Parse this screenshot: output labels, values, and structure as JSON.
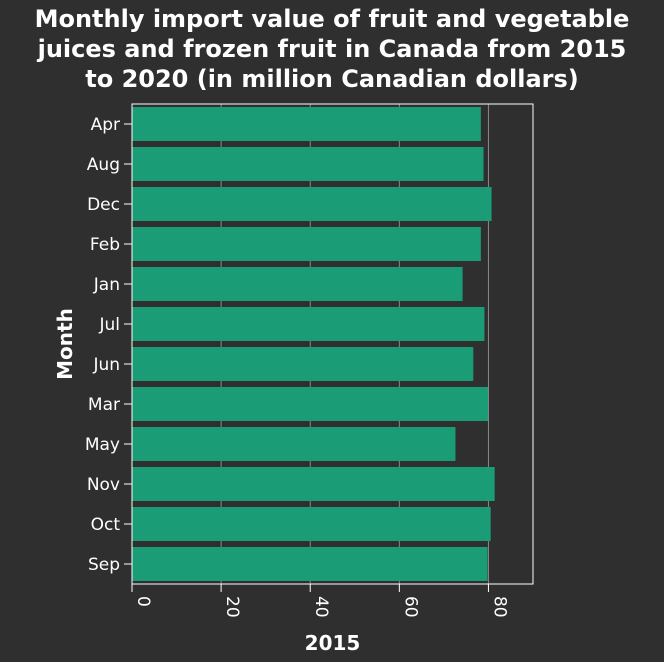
{
  "chart_data": {
    "type": "bar",
    "orientation": "horizontal",
    "title_lines": [
      "Monthly import value of fruit and vegetable",
      "juices and frozen fruit in Canada from 2015",
      "to 2020 (in million Canadian dollars)"
    ],
    "xlabel": "2015",
    "ylabel": "Month",
    "categories": [
      "Apr",
      "Aug",
      "Dec",
      "Feb",
      "Jan",
      "Jul",
      "Jun",
      "Mar",
      "May",
      "Nov",
      "Oct",
      "Sep"
    ],
    "values": [
      78.3,
      78.9,
      80.7,
      78.3,
      74.2,
      79.1,
      76.6,
      79.9,
      72.6,
      81.4,
      80.5,
      79.8
    ],
    "xlim": [
      0,
      90
    ],
    "xticks": [
      0,
      20,
      40,
      60,
      80
    ],
    "grid": true,
    "colors": {
      "background": "#2f2f2f",
      "bar": "#1a9c76",
      "grid": "#8a8a8a",
      "text": "#ffffff"
    }
  }
}
